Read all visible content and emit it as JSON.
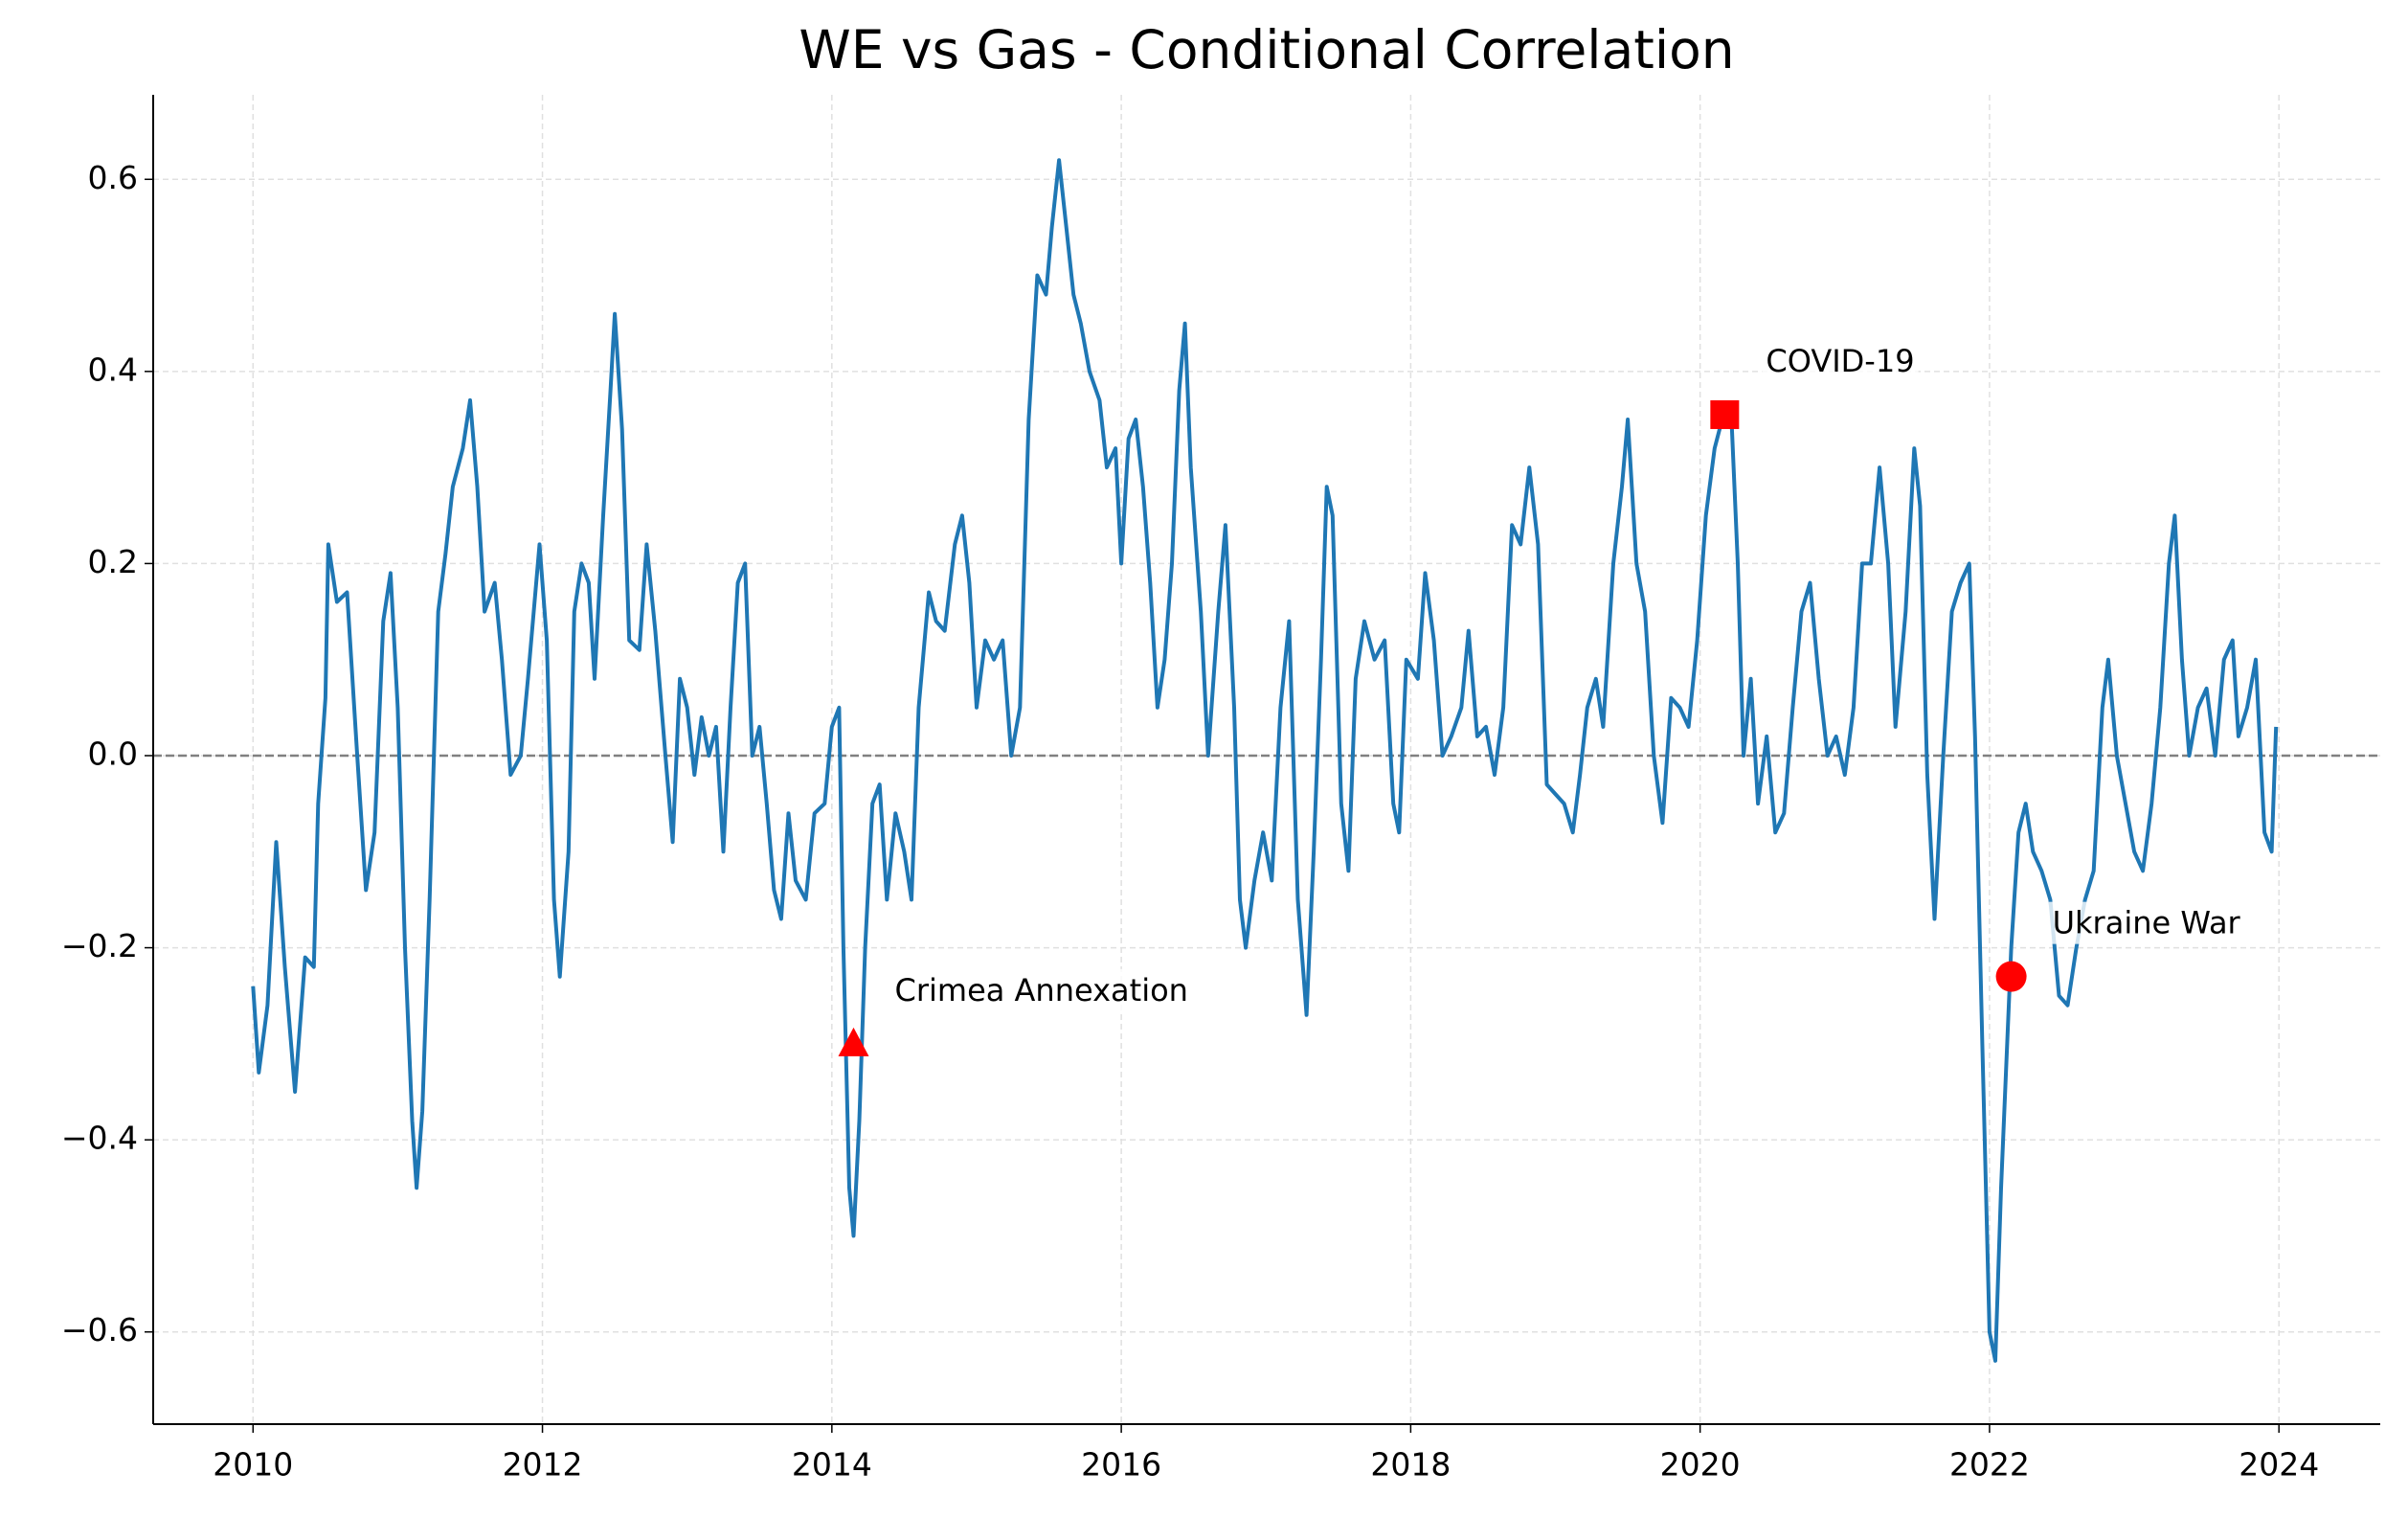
{
  "chart_data": {
    "type": "line",
    "title": "WE vs Gas - Conditional Correlation",
    "x": [
      2010.0,
      2010.04,
      2010.1,
      2010.16,
      2010.22,
      2010.29,
      2010.36,
      2010.42,
      2010.45,
      2010.5,
      2010.52,
      2010.58,
      2010.65,
      2010.72,
      2010.78,
      2010.84,
      2010.9,
      2010.95,
      2011.0,
      2011.05,
      2011.1,
      2011.13,
      2011.17,
      2011.22,
      2011.28,
      2011.33,
      2011.38,
      2011.45,
      2011.5,
      2011.55,
      2011.6,
      2011.67,
      2011.72,
      2011.78,
      2011.85,
      2011.9,
      2011.98,
      2012.03,
      2012.08,
      2012.12,
      2012.18,
      2012.22,
      2012.27,
      2012.32,
      2012.36,
      2012.42,
      2012.47,
      2012.5,
      2012.55,
      2012.6,
      2012.67,
      2012.72,
      2012.78,
      2012.85,
      2012.9,
      2012.95,
      2013.0,
      2013.05,
      2013.1,
      2013.15,
      2013.2,
      2013.25,
      2013.3,
      2013.35,
      2013.4,
      2013.45,
      2013.5,
      2013.55,
      2013.6,
      2013.65,
      2013.7,
      2013.75,
      2013.82,
      2013.88,
      2013.95,
      2014.0,
      2014.05,
      2014.08,
      2014.12,
      2014.15,
      2014.19,
      2014.23,
      2014.28,
      2014.33,
      2014.38,
      2014.44,
      2014.5,
      2014.55,
      2014.6,
      2014.67,
      2014.72,
      2014.78,
      2014.85,
      2014.9,
      2014.95,
      2015.0,
      2015.06,
      2015.12,
      2015.18,
      2015.24,
      2015.3,
      2015.36,
      2015.42,
      2015.48,
      2015.52,
      2015.57,
      2015.62,
      2015.67,
      2015.72,
      2015.78,
      2015.85,
      2015.9,
      2015.96,
      2016.0,
      2016.05,
      2016.1,
      2016.15,
      2016.2,
      2016.25,
      2016.3,
      2016.35,
      2016.4,
      2016.44,
      2016.48,
      2016.55,
      2016.6,
      2016.67,
      2016.72,
      2016.78,
      2016.82,
      2016.86,
      2016.92,
      2016.98,
      2017.04,
      2017.1,
      2017.16,
      2017.22,
      2017.28,
      2017.33,
      2017.38,
      2017.42,
      2017.46,
      2017.52,
      2017.57,
      2017.62,
      2017.68,
      2017.75,
      2017.82,
      2017.88,
      2017.92,
      2017.97,
      2018.05,
      2018.1,
      2018.16,
      2018.22,
      2018.28,
      2018.35,
      2018.4,
      2018.46,
      2018.52,
      2018.58,
      2018.64,
      2018.7,
      2018.76,
      2018.82,
      2018.88,
      2018.94,
      2019.0,
      2019.06,
      2019.12,
      2019.17,
      2019.22,
      2019.28,
      2019.33,
      2019.4,
      2019.46,
      2019.5,
      2019.56,
      2019.62,
      2019.68,
      2019.74,
      2019.8,
      2019.86,
      2019.92,
      2019.98,
      2020.04,
      2020.1,
      2020.17,
      2020.22,
      2020.26,
      2020.3,
      2020.35,
      2020.4,
      2020.46,
      2020.52,
      2020.58,
      2020.64,
      2020.7,
      2020.76,
      2020.82,
      2020.88,
      2020.94,
      2021.0,
      2021.06,
      2021.12,
      2021.18,
      2021.24,
      2021.3,
      2021.35,
      2021.42,
      2021.48,
      2021.52,
      2021.57,
      2021.62,
      2021.68,
      2021.74,
      2021.8,
      2021.86,
      2021.9,
      2021.95,
      2022.0,
      2022.04,
      2022.08,
      2022.15,
      2022.2,
      2022.25,
      2022.3,
      2022.36,
      2022.42,
      2022.48,
      2022.54,
      2022.6,
      2022.66,
      2022.72,
      2022.78,
      2022.82,
      2022.88,
      2022.94,
      2023.0,
      2023.06,
      2023.12,
      2023.18,
      2023.24,
      2023.28,
      2023.33,
      2023.38,
      2023.44,
      2023.5,
      2023.56,
      2023.62,
      2023.68,
      2023.72,
      2023.78,
      2023.84,
      2023.9,
      2023.95,
      2023.98
    ],
    "series": [
      {
        "color": "#1f77b4",
        "values": [
          -0.24,
          -0.33,
          -0.26,
          -0.09,
          -0.22,
          -0.35,
          -0.21,
          -0.22,
          -0.05,
          0.06,
          0.22,
          0.16,
          0.17,
          0.0,
          -0.14,
          -0.08,
          0.14,
          0.19,
          0.05,
          -0.2,
          -0.38,
          -0.45,
          -0.37,
          -0.15,
          0.15,
          0.21,
          0.28,
          0.32,
          0.37,
          0.28,
          0.15,
          0.18,
          0.1,
          -0.02,
          0.0,
          0.08,
          0.22,
          0.12,
          -0.15,
          -0.23,
          -0.1,
          0.15,
          0.2,
          0.18,
          0.08,
          0.25,
          0.38,
          0.46,
          0.34,
          0.12,
          0.11,
          0.22,
          0.13,
          0.0,
          -0.09,
          0.08,
          0.05,
          -0.02,
          0.04,
          0.0,
          0.03,
          -0.1,
          0.05,
          0.18,
          0.2,
          0.0,
          0.03,
          -0.05,
          -0.14,
          -0.17,
          -0.06,
          -0.13,
          -0.15,
          -0.06,
          -0.05,
          0.03,
          0.05,
          -0.2,
          -0.45,
          -0.5,
          -0.38,
          -0.2,
          -0.05,
          -0.03,
          -0.15,
          -0.06,
          -0.1,
          -0.15,
          0.05,
          0.17,
          0.14,
          0.13,
          0.22,
          0.25,
          0.18,
          0.05,
          0.12,
          0.1,
          0.12,
          0.0,
          0.05,
          0.35,
          0.5,
          0.48,
          0.55,
          0.62,
          0.55,
          0.48,
          0.45,
          0.4,
          0.37,
          0.3,
          0.32,
          0.2,
          0.33,
          0.35,
          0.28,
          0.18,
          0.05,
          0.1,
          0.2,
          0.38,
          0.45,
          0.3,
          0.15,
          0.0,
          0.15,
          0.24,
          0.05,
          -0.15,
          -0.2,
          -0.13,
          -0.08,
          -0.13,
          0.05,
          0.14,
          -0.15,
          -0.27,
          -0.1,
          0.1,
          0.28,
          0.25,
          -0.05,
          -0.12,
          0.08,
          0.14,
          0.1,
          0.12,
          -0.05,
          -0.08,
          0.1,
          0.08,
          0.19,
          0.12,
          0.0,
          0.02,
          0.05,
          0.13,
          0.02,
          0.03,
          -0.02,
          0.05,
          0.24,
          0.22,
          0.3,
          0.22,
          -0.03,
          -0.04,
          -0.05,
          -0.08,
          -0.02,
          0.05,
          0.08,
          0.03,
          0.2,
          0.28,
          0.35,
          0.2,
          0.15,
          0.0,
          -0.07,
          0.06,
          0.05,
          0.03,
          0.12,
          0.25,
          0.32,
          0.36,
          0.34,
          0.2,
          0.0,
          0.08,
          -0.05,
          0.02,
          -0.08,
          -0.06,
          0.05,
          0.15,
          0.18,
          0.08,
          0.0,
          0.02,
          -0.02,
          0.05,
          0.2,
          0.2,
          0.3,
          0.2,
          0.03,
          0.15,
          0.32,
          0.26,
          -0.02,
          -0.17,
          0.0,
          0.15,
          0.18,
          0.2,
          0.02,
          -0.3,
          -0.6,
          -0.63,
          -0.45,
          -0.2,
          -0.08,
          -0.05,
          -0.1,
          -0.12,
          -0.15,
          -0.25,
          -0.26,
          -0.2,
          -0.15,
          -0.12,
          0.05,
          0.1,
          0.0,
          -0.05,
          -0.1,
          -0.12,
          -0.05,
          0.05,
          0.2,
          0.25,
          0.1,
          0.0,
          0.05,
          0.07,
          0.0,
          0.1,
          0.12,
          0.02,
          0.05,
          0.1,
          -0.08,
          -0.1,
          0.03
        ]
      }
    ],
    "xlim": [
      2009.31,
      2024.7
    ],
    "ylim": [
      -0.696,
      0.688
    ],
    "xticks": [
      2010,
      2012,
      2014,
      2016,
      2018,
      2020,
      2022,
      2024
    ],
    "yticks": [
      {
        "value": -0.6,
        "label": "−0.6"
      },
      {
        "value": -0.4,
        "label": "−0.4"
      },
      {
        "value": -0.2,
        "label": "−0.2"
      },
      {
        "value": 0,
        "label": "0.0"
      },
      {
        "value": 0.2,
        "label": "0.2"
      },
      {
        "value": 0.4,
        "label": "0.4"
      },
      {
        "value": 0.6,
        "label": "0.6"
      }
    ],
    "grid": true,
    "reference_line": {
      "value": 0,
      "color": "#808080"
    },
    "annotations": [
      {
        "text": "Crimea Annexation",
        "x": 2014.15,
        "y": -0.3,
        "marker": "triangle",
        "color": "#ff0000"
      },
      {
        "text": "COVID-19",
        "x": 2020.17,
        "y": 0.355,
        "marker": "square",
        "color": "#ff0000"
      },
      {
        "text": "Ukraine War",
        "x": 2022.15,
        "y": -0.23,
        "marker": "circle",
        "color": "#ff0000"
      }
    ]
  }
}
